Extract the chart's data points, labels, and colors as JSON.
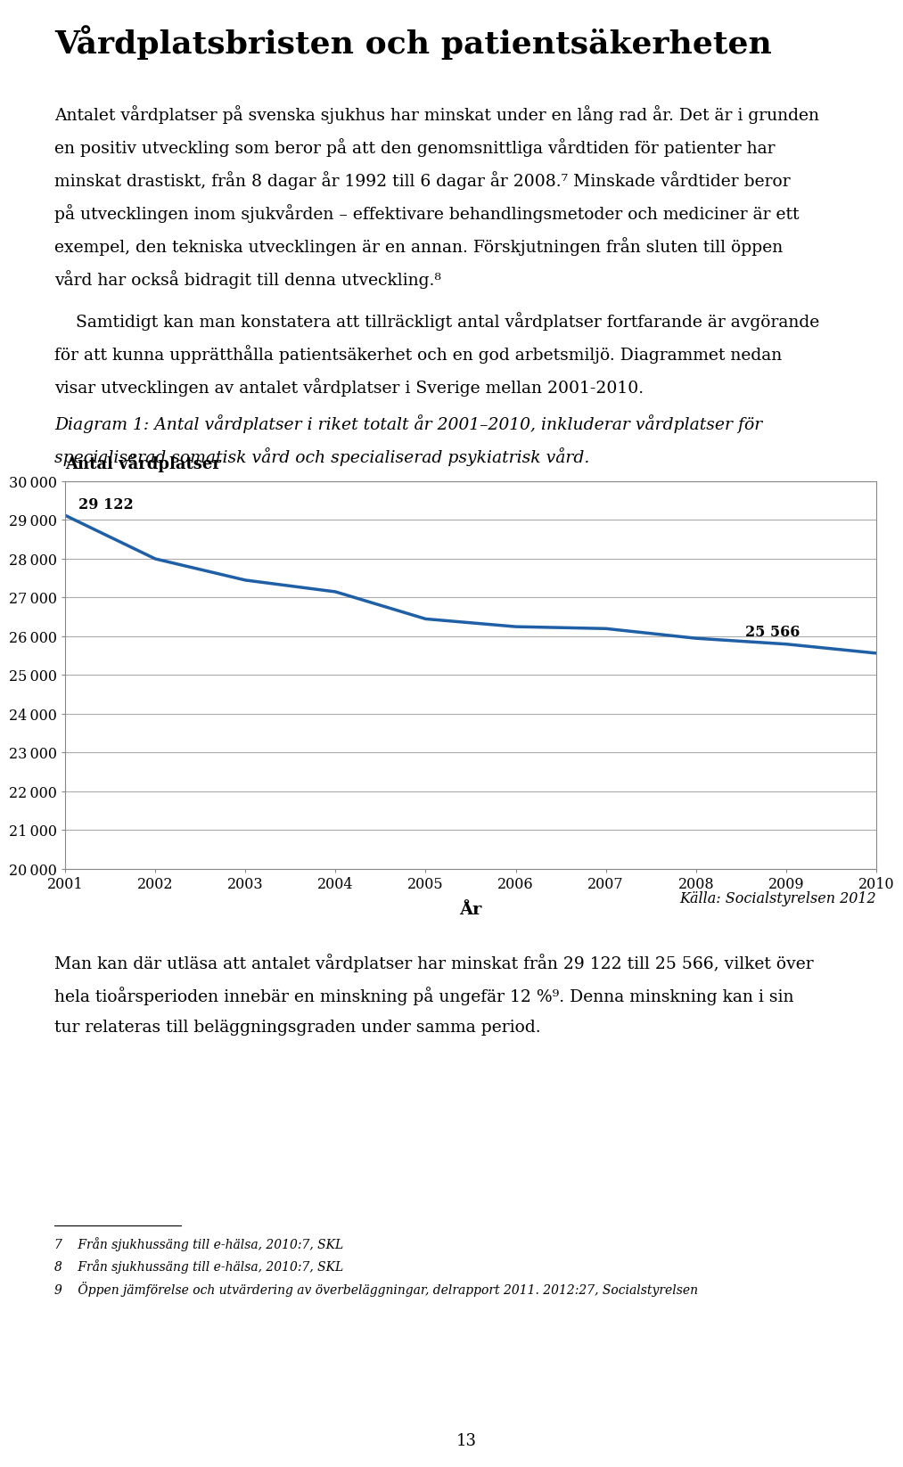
{
  "title": "Vårdplatsbristen och patientsäkerheten",
  "chart_ylabel_title": "Antal vårdplatser",
  "chart_xlabel": "År",
  "years": [
    2001,
    2002,
    2003,
    2004,
    2005,
    2006,
    2007,
    2008,
    2009,
    2010
  ],
  "values": [
    29122,
    28000,
    27450,
    27150,
    26450,
    26250,
    26200,
    25950,
    25800,
    25566
  ],
  "line_color": "#1f5fa6",
  "ylim_min": 20000,
  "ylim_max": 30000,
  "yticks": [
    20000,
    21000,
    22000,
    23000,
    24000,
    25000,
    26000,
    27000,
    28000,
    29000,
    30000
  ],
  "first_label": "29 122",
  "last_label": "25 566",
  "source": "Källa: Socialstyrelsen 2012",
  "page_number": "13",
  "background_color": "#ffffff",
  "grid_color": "#aaaaaa",
  "box_color": "#888888"
}
